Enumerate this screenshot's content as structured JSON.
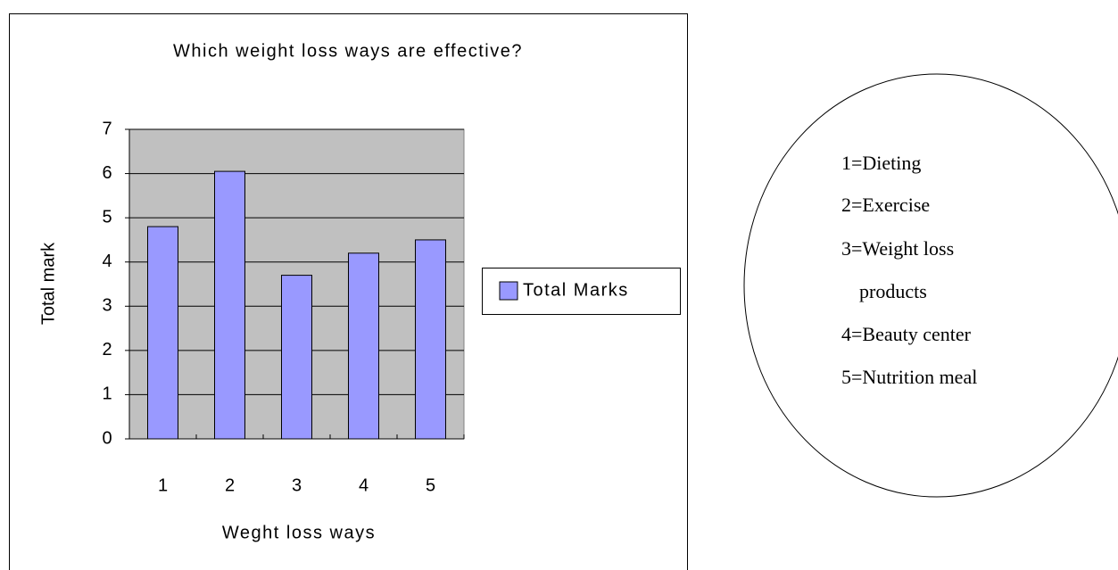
{
  "chart_data": {
    "type": "bar",
    "title": "Which weight loss ways are effective?",
    "x_label": "Weght loss ways",
    "y_label": "Total mark",
    "categories": [
      "1",
      "2",
      "3",
      "4",
      "5"
    ],
    "series": [
      {
        "name": "Total Marks",
        "color": "#9999ff",
        "values": [
          4.8,
          6.05,
          3.7,
          4.2,
          4.5
        ]
      }
    ],
    "ylim": [
      0,
      7
    ],
    "yticks": [
      0,
      1,
      2,
      3,
      4,
      5,
      6,
      7
    ],
    "grid": true,
    "legend": "right",
    "annotation_lines": [
      "1=Dieting",
      "2=Exercise",
      "3=Weight loss",
      "products",
      "4=Beauty center",
      "5=Nutrition meal"
    ]
  }
}
